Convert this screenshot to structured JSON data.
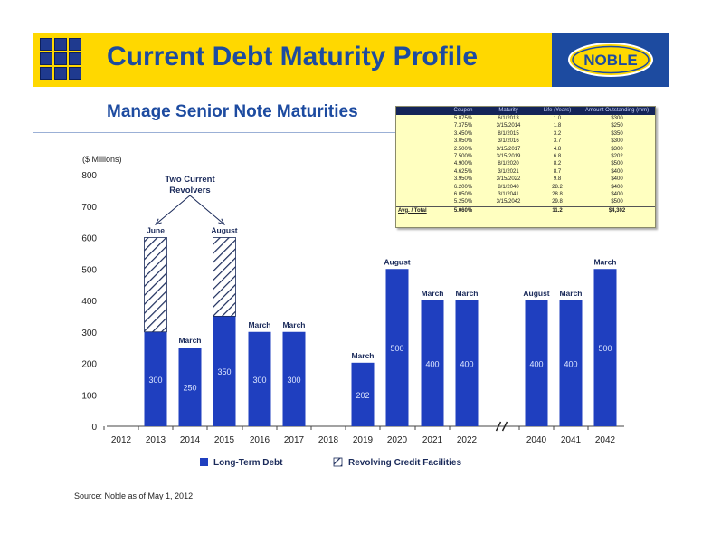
{
  "header": {
    "title": "Current Debt Maturity Profile",
    "subtitle": "Manage Senior Note Maturities",
    "logo_text": "NOBLE",
    "brand_yellow": "#ffd800",
    "brand_blue": "#1d4ba0"
  },
  "maturity_table": {
    "columns": [
      "Coupon",
      "Maturity",
      "Life (Years)",
      "Amount Outstanding (mm)"
    ],
    "rows": [
      [
        "5.875%",
        "6/1/2013",
        "1.0",
        "$300"
      ],
      [
        "7.375%",
        "3/15/2014",
        "1.8",
        "$250"
      ],
      [
        "3.450%",
        "8/1/2015",
        "3.2",
        "$350"
      ],
      [
        "3.050%",
        "3/1/2016",
        "3.7",
        "$300"
      ],
      [
        "2.500%",
        "3/15/2017",
        "4.8",
        "$300"
      ],
      [
        "7.500%",
        "3/15/2019",
        "6.8",
        "$202"
      ],
      [
        "4.900%",
        "8/1/2020",
        "8.2",
        "$500"
      ],
      [
        "4.625%",
        "3/1/2021",
        "8.7",
        "$400"
      ],
      [
        "3.950%",
        "3/15/2022",
        "9.8",
        "$400"
      ],
      [
        "6.200%",
        "8/1/2040",
        "28.2",
        "$400"
      ],
      [
        "6.050%",
        "3/1/2041",
        "28.8",
        "$400"
      ],
      [
        "5.250%",
        "3/15/2042",
        "29.8",
        "$500"
      ]
    ],
    "total": [
      "Avg. / Total",
      "5.060%",
      "",
      "11.2",
      "$4,302"
    ]
  },
  "chart_data": {
    "type": "bar",
    "ylabel": "($ Millions)",
    "ylim": [
      0,
      800
    ],
    "yticks": [
      0,
      100,
      200,
      300,
      400,
      500,
      600,
      700,
      800
    ],
    "categories": [
      "2012",
      "2013",
      "2014",
      "2015",
      "2016",
      "2017",
      "2018",
      "2019",
      "2020",
      "2021",
      "2022",
      "2040",
      "2041",
      "2042"
    ],
    "axis_break_after": "2022",
    "series": [
      {
        "name": "Long-Term Debt",
        "color": "#1f3fbf",
        "values": [
          0,
          300,
          250,
          350,
          300,
          300,
          0,
          202,
          500,
          400,
          400,
          400,
          400,
          500
        ],
        "value_labels": [
          "",
          "300",
          "250",
          "350",
          "300",
          "300",
          "",
          "202",
          "500",
          "400",
          "400",
          "400",
          "400",
          "500"
        ]
      },
      {
        "name": "Revolving Credit Facilities",
        "pattern": "diagonal-hatch",
        "values": [
          0,
          300,
          0,
          250,
          0,
          0,
          0,
          0,
          0,
          0,
          0,
          0,
          0,
          0
        ]
      }
    ],
    "month_labels": [
      "",
      "June",
      "March",
      "August",
      "March",
      "March",
      "",
      "March",
      "August",
      "March",
      "March",
      "August",
      "March",
      "March"
    ],
    "annotation": {
      "text_line1": "Two Current",
      "text_line2": "Revolvers",
      "targets": [
        "2013",
        "2015"
      ]
    },
    "legend": [
      "Long-Term Debt",
      "Revolving Credit Facilities"
    ],
    "legend_position": "bottom"
  },
  "footer": {
    "source": "Source: Noble as of May 1, 2012"
  }
}
